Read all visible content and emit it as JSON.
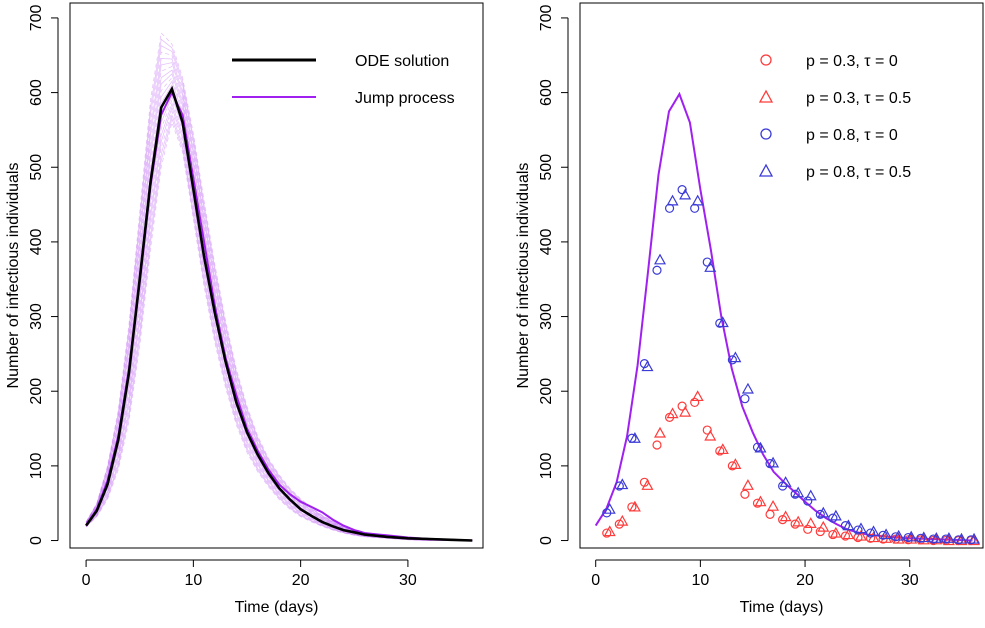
{
  "chart_data": [
    {
      "type": "line",
      "xlabel": "Time (days)",
      "ylabel": "Number of infectious individuals",
      "xlim": [
        -1.5,
        37
      ],
      "ylim": [
        -10,
        720
      ],
      "xticks": [
        0,
        10,
        20,
        30
      ],
      "yticks": [
        0,
        100,
        200,
        300,
        400,
        500,
        600,
        700
      ],
      "legend_position": "top-right",
      "legend": [
        {
          "label": "ODE solution",
          "color": "#000000",
          "style": "line-thick"
        },
        {
          "label": "Jump process",
          "color": "#a020f0",
          "style": "line"
        }
      ],
      "series": [
        {
          "name": "ODE solution",
          "color": "#000000",
          "x": [
            0,
            1,
            2,
            3,
            4,
            5,
            6,
            7,
            8,
            9,
            10,
            11,
            12,
            13,
            14,
            15,
            16,
            17,
            18,
            19,
            20,
            21,
            22,
            23,
            24,
            25,
            26,
            28,
            30,
            32,
            34,
            36
          ],
          "y": [
            20,
            40,
            75,
            135,
            225,
            350,
            480,
            580,
            605,
            560,
            470,
            380,
            305,
            240,
            185,
            145,
            115,
            90,
            70,
            55,
            42,
            33,
            25,
            19,
            14,
            11,
            8,
            5,
            3,
            2,
            1,
            0
          ]
        },
        {
          "name": "Jump process",
          "color": "#a020f0",
          "x": [
            0,
            1,
            2,
            3,
            4,
            5,
            6,
            7,
            8,
            9,
            10,
            11,
            12,
            13,
            14,
            15,
            16,
            17,
            18,
            19,
            20,
            21,
            22,
            23,
            24,
            25,
            26,
            28,
            30,
            32,
            34,
            36
          ],
          "y": [
            20,
            42,
            80,
            140,
            230,
            345,
            475,
            570,
            600,
            570,
            485,
            400,
            315,
            245,
            195,
            150,
            120,
            95,
            75,
            62,
            52,
            45,
            38,
            28,
            20,
            14,
            10,
            7,
            4,
            2,
            1,
            0
          ]
        }
      ],
      "trajectory_band": {
        "x": [
          0,
          1,
          2,
          3,
          4,
          5,
          6,
          7,
          8,
          9,
          10,
          11,
          12,
          13,
          14,
          15,
          16,
          17,
          18,
          19,
          20,
          21,
          22,
          23,
          24,
          25,
          26,
          28,
          30,
          32,
          34,
          36
        ],
        "upper": [
          25,
          50,
          100,
          175,
          290,
          440,
          590,
          680,
          665,
          620,
          545,
          455,
          370,
          295,
          230,
          180,
          140,
          110,
          88,
          70,
          56,
          44,
          34,
          26,
          20,
          15,
          11,
          7,
          4,
          2,
          1,
          0
        ],
        "lower": [
          18,
          32,
          55,
          95,
          160,
          260,
          390,
          500,
          560,
          520,
          430,
          340,
          265,
          205,
          155,
          118,
          92,
          72,
          55,
          42,
          32,
          25,
          19,
          14,
          10,
          7,
          5,
          3,
          1,
          0,
          0,
          0
        ]
      }
    },
    {
      "type": "scatter",
      "xlabel": "Time (days)",
      "ylabel": "Number of infectious individuals",
      "xlim": [
        -1.5,
        37
      ],
      "ylim": [
        -10,
        720
      ],
      "xticks": [
        0,
        10,
        20,
        30
      ],
      "yticks": [
        0,
        100,
        200,
        300,
        400,
        500,
        600,
        700
      ],
      "legend_position": "top-right",
      "legend": [
        {
          "label_p": "p",
          "label_p_value": "0.3",
          "label_tau_value": "0",
          "color": "#ff3b3b",
          "marker": "circle"
        },
        {
          "label_p": "p",
          "label_p_value": "0.3",
          "label_tau_value": "0.5",
          "color": "#ff3b3b",
          "marker": "triangle"
        },
        {
          "label_p": "p",
          "label_p_value": "0.8",
          "label_tau_value": "0",
          "color": "#3b3bd6",
          "marker": "circle"
        },
        {
          "label_p": "p",
          "label_p_value": "0.8",
          "label_tau_value": "0.5",
          "color": "#3b3bd6",
          "marker": "triangle"
        }
      ],
      "line": {
        "color": "#a020f0",
        "x": [
          0,
          1,
          2,
          3,
          4,
          5,
          6,
          7,
          8,
          9,
          10,
          11,
          12,
          13,
          14,
          15,
          16,
          17,
          18,
          19,
          20,
          21,
          22,
          23,
          24,
          25,
          26,
          28,
          30,
          32,
          34,
          36
        ],
        "y": [
          20,
          42,
          78,
          140,
          235,
          360,
          490,
          575,
          598,
          560,
          470,
          390,
          300,
          230,
          180,
          145,
          115,
          92,
          78,
          65,
          52,
          40,
          30,
          22,
          15,
          11,
          8,
          5,
          3,
          2,
          1,
          0
        ]
      },
      "points": [
        {
          "series": "p=0.3 tau=0",
          "x": [
            1.2,
            2.4,
            3.6,
            4.8,
            6.0,
            7.2,
            8.4,
            9.6,
            10.8,
            12.0,
            13.2,
            14.4,
            15.6,
            16.8,
            18.0,
            19.2,
            20.4,
            21.6,
            22.8,
            24.0,
            25.2,
            26.4,
            27.6,
            28.8,
            30.0,
            31.2,
            32.4,
            33.6,
            34.8,
            36.0
          ],
          "y": [
            10,
            22,
            45,
            78,
            128,
            165,
            180,
            185,
            148,
            120,
            100,
            62,
            50,
            35,
            28,
            22,
            15,
            12,
            8,
            6,
            4,
            3,
            2,
            2,
            1,
            1,
            0,
            0,
            0,
            0
          ]
        },
        {
          "series": "p=0.3 tau=0.5",
          "x": [
            1.2,
            2.4,
            3.6,
            4.8,
            6.0,
            7.2,
            8.4,
            9.6,
            10.8,
            12.0,
            13.2,
            14.4,
            15.6,
            16.8,
            18.0,
            19.2,
            20.4,
            21.6,
            22.8,
            24.0,
            25.2,
            26.4,
            27.6,
            28.8,
            30.0,
            31.2,
            32.4,
            33.6,
            34.8,
            36.0
          ],
          "y": [
            12,
            26,
            45,
            74,
            144,
            170,
            172,
            193,
            140,
            122,
            102,
            74,
            52,
            46,
            32,
            25,
            23,
            18,
            10,
            8,
            6,
            4,
            3,
            2,
            2,
            1,
            1,
            0,
            0,
            0
          ]
        },
        {
          "series": "p=0.8 tau=0",
          "x": [
            1.2,
            2.4,
            3.6,
            4.8,
            6.0,
            7.2,
            8.4,
            9.6,
            10.8,
            12.0,
            13.2,
            14.4,
            15.6,
            16.8,
            18.0,
            19.2,
            20.4,
            21.6,
            22.8,
            24.0,
            25.2,
            26.4,
            27.6,
            28.8,
            30.0,
            31.2,
            32.4,
            33.6,
            34.8,
            36.0
          ],
          "y": [
            37,
            73,
            137,
            237,
            362,
            445,
            470,
            445,
            373,
            291,
            242,
            190,
            125,
            103,
            73,
            62,
            53,
            35,
            30,
            20,
            14,
            10,
            7,
            5,
            4,
            3,
            2,
            2,
            1,
            1
          ]
        },
        {
          "series": "p=0.8 tau=0.5",
          "x": [
            1.2,
            2.4,
            3.6,
            4.8,
            6.0,
            7.2,
            8.4,
            9.6,
            10.8,
            12.0,
            13.2,
            14.4,
            15.6,
            16.8,
            18.0,
            19.2,
            20.4,
            21.6,
            22.8,
            24.0,
            25.2,
            26.4,
            27.6,
            28.8,
            30.0,
            31.2,
            32.4,
            33.6,
            34.8,
            36.0
          ],
          "y": [
            42,
            75,
            137,
            233,
            376,
            455,
            463,
            455,
            366,
            292,
            245,
            203,
            124,
            104,
            78,
            64,
            60,
            37,
            33,
            20,
            16,
            12,
            8,
            6,
            5,
            4,
            3,
            3,
            2,
            2
          ]
        }
      ]
    }
  ]
}
